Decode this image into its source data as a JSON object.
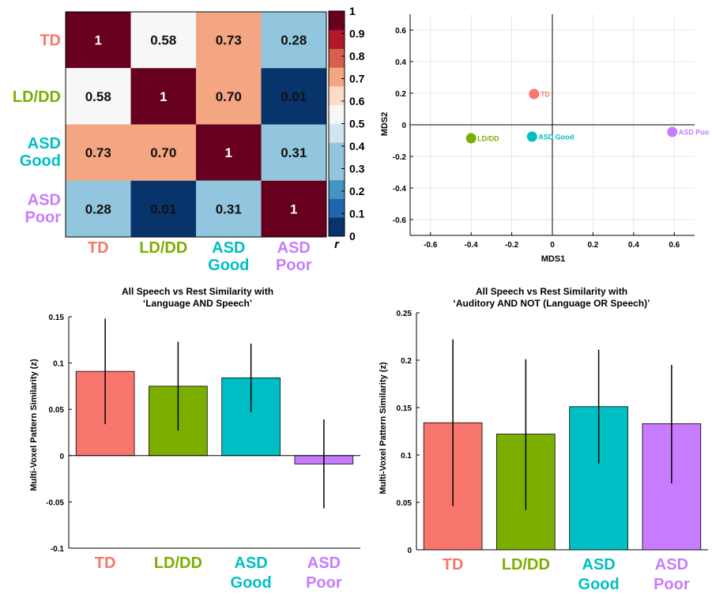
{
  "groups": [
    {
      "lines": [
        "TD"
      ],
      "color": "#F8766D"
    },
    {
      "lines": [
        "LD/DD"
      ],
      "color": "#7CAE00"
    },
    {
      "lines": [
        "ASD",
        "Good"
      ],
      "color": "#00BFC4"
    },
    {
      "lines": [
        "ASD",
        "Poor"
      ],
      "color": "#C77CFF"
    }
  ],
  "chart_data": [
    {
      "type": "heatmap",
      "rows": [
        "TD",
        "LD/DD",
        "ASD Good",
        "ASD Poor"
      ],
      "cols": [
        "TD",
        "LD/DD",
        "ASD Good",
        "ASD Poor"
      ],
      "values": [
        [
          1,
          0.58,
          0.73,
          0.28
        ],
        [
          0.58,
          1,
          0.7,
          0.01
        ],
        [
          0.73,
          0.7,
          1,
          0.31
        ],
        [
          0.28,
          0.01,
          0.31,
          1
        ]
      ],
      "cell_labels": [
        [
          "1",
          "0.58",
          "0.73",
          "0.28"
        ],
        [
          "0.58",
          "1",
          "0.70",
          "0.01"
        ],
        [
          "0.73",
          "0.70",
          "1",
          "0.31"
        ],
        [
          "0.28",
          "0.01",
          "0.31",
          "1"
        ]
      ],
      "colorbar": {
        "label": "r",
        "range": [
          0,
          1
        ],
        "ticks": [
          "0",
          "0.1",
          "0.2",
          "0.3",
          "0.4",
          "0.5",
          "0.6",
          "0.7",
          "0.8",
          "0.9",
          "1"
        ],
        "colors": [
          "#08336B",
          "#2166AC",
          "#4393C3",
          "#92C5DE",
          "#92C5DE",
          "#D1E5F0",
          "#F7F7F7",
          "#FDDBC7",
          "#F4A582",
          "#D6604D",
          "#B2182B",
          "#67001F"
        ]
      }
    },
    {
      "type": "scatter",
      "xlabel": "MDS1",
      "ylabel": "MDS2",
      "xlim": [
        -0.7,
        0.7
      ],
      "ylim": [
        -0.7,
        0.7
      ],
      "xticks": [
        "-0.6",
        "-0.4",
        "-0.2",
        "0",
        "0.2",
        "0.4",
        "0.6"
      ],
      "yticks": [
        "0.6",
        "0.4",
        "0.2",
        "0",
        "-0.2",
        "-0.4",
        "-0.6"
      ],
      "grid": true,
      "points": [
        {
          "label": "TD",
          "x": -0.09,
          "y": 0.195,
          "color": "#F8766D"
        },
        {
          "label": "LD/DD",
          "x": -0.4,
          "y": -0.085,
          "color": "#7CAE00"
        },
        {
          "label": "ASD Good",
          "x": -0.1,
          "y": -0.075,
          "color": "#00BFC4"
        },
        {
          "label": "ASD Poor",
          "x": 0.59,
          "y": -0.045,
          "color": "#C77CFF"
        }
      ],
      "point_label_visible": [
        "TD",
        "LD/DD",
        "ASD Good",
        "ASD Poo"
      ]
    },
    {
      "type": "bar",
      "title": [
        "All Speech vs Rest Similarity with",
        "‘Language AND Speech’"
      ],
      "ylabel": "Multi-Voxel Pattern Similarity (z)",
      "ylim": [
        -0.1,
        0.15
      ],
      "yticks": [
        "0.15",
        "0.1",
        "0.05",
        "0",
        "-0.05",
        "-0.1"
      ],
      "categories": [
        "TD",
        "LD/DD",
        "ASD Good",
        "ASD Poor"
      ],
      "values": [
        0.091,
        0.075,
        0.084,
        -0.009
      ],
      "errors": [
        [
          0.034,
          0.148
        ],
        [
          0.027,
          0.123
        ],
        [
          0.047,
          0.121
        ],
        [
          -0.057,
          0.039
        ]
      ]
    },
    {
      "type": "bar",
      "title": [
        "All Speech vs Rest Similarity with",
        "‘Auditory AND NOT (Language OR Speech)’"
      ],
      "ylabel": "Multi-Voxel Pattern Similarity (z)",
      "ylim": [
        0,
        0.25
      ],
      "yticks": [
        "0.25",
        "0.2",
        "0.15",
        "0.1",
        "0.05",
        "0"
      ],
      "categories": [
        "TD",
        "LD/DD",
        "ASD Good",
        "ASD Poor"
      ],
      "values": [
        0.134,
        0.122,
        0.151,
        0.133
      ],
      "errors": [
        [
          0.046,
          0.222
        ],
        [
          0.042,
          0.201
        ],
        [
          0.091,
          0.211
        ],
        [
          0.07,
          0.195
        ]
      ]
    }
  ]
}
